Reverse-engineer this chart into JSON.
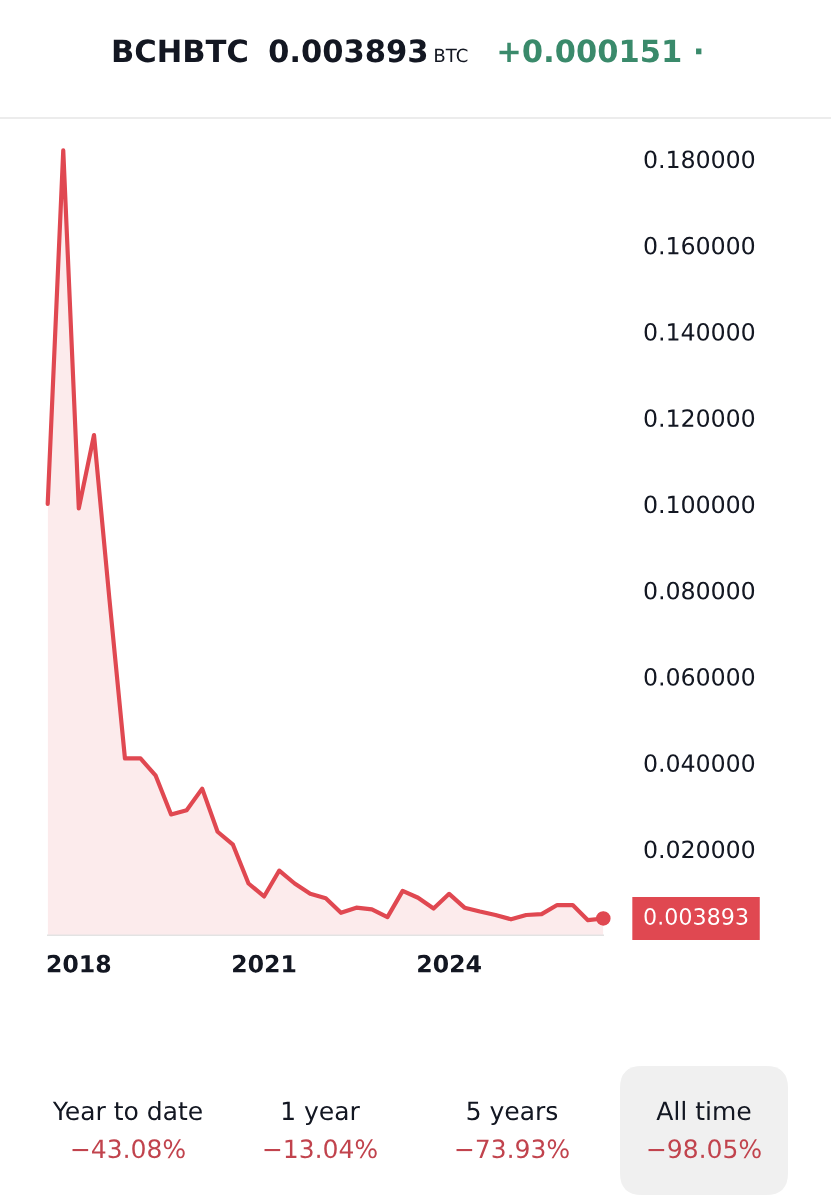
{
  "chart_data": {
    "type": "area",
    "title": "BCHBTC",
    "annotations": [
      "0.003893",
      "BTC",
      "+0.000151 ·",
      "Year to date",
      "−43.08%",
      "1 year",
      "−13.04%",
      "5 years",
      "−73.93%",
      "All time",
      "−98.05%"
    ],
    "x": [
      "2017-07",
      "2017-10",
      "2018-01",
      "2018-04",
      "2018-07",
      "2018-10",
      "2019-01",
      "2019-04",
      "2019-07",
      "2019-10",
      "2020-01",
      "2020-04",
      "2020-07",
      "2020-10",
      "2021-01",
      "2021-04",
      "2021-07",
      "2021-10",
      "2022-01",
      "2022-04",
      "2022-07",
      "2022-10",
      "2023-01",
      "2023-04",
      "2023-07",
      "2023-10",
      "2024-01",
      "2024-04",
      "2024-07",
      "2024-10",
      "2025-01",
      "2025-04",
      "2025-07",
      "2025-10",
      "2026-01",
      "2026-04",
      "2026-07"
    ],
    "series": [
      {
        "color": "#e04851",
        "values": [
          0.1,
          0.182,
          0.099,
          0.116,
          0.078,
          0.041,
          0.041,
          0.037,
          0.028,
          0.029,
          0.034,
          0.024,
          0.021,
          0.012,
          0.009,
          0.015,
          0.012,
          0.0096,
          0.0086,
          0.0052,
          0.0064,
          0.006,
          0.0042,
          0.0103,
          0.0087,
          0.0062,
          0.0096,
          0.0064,
          0.0055,
          0.0047,
          0.0037,
          0.0047,
          0.0049,
          0.007,
          0.007,
          0.0035,
          0.003893
        ],
        "value_labels": [
          null,
          null,
          null,
          null,
          null,
          null,
          null,
          null,
          null,
          null,
          null,
          null,
          null,
          null,
          null,
          null,
          null,
          null,
          null,
          null,
          null,
          null,
          null,
          null,
          null,
          null,
          null,
          null,
          null,
          null,
          null,
          null,
          null,
          null,
          null,
          null,
          "0.003893"
        ]
      }
    ],
    "xlim": [
      "2017-07",
      "2026-07"
    ],
    "ylim": [
      0,
      0.19
    ],
    "xticks": [
      "2018",
      "2021",
      "2024"
    ],
    "yticks": [
      {
        "value": 0.02,
        "label": "0.020000"
      },
      {
        "value": 0.04,
        "label": "0.040000"
      },
      {
        "value": 0.06,
        "label": "0.060000"
      },
      {
        "value": 0.08,
        "label": "0.080000"
      },
      {
        "value": 0.1,
        "label": "0.100000"
      },
      {
        "value": 0.12,
        "label": "0.120000"
      },
      {
        "value": 0.14,
        "label": "0.140000"
      },
      {
        "value": 0.16,
        "label": "0.160000"
      },
      {
        "value": 0.18,
        "label": "0.180000"
      }
    ],
    "grid": false
  }
}
